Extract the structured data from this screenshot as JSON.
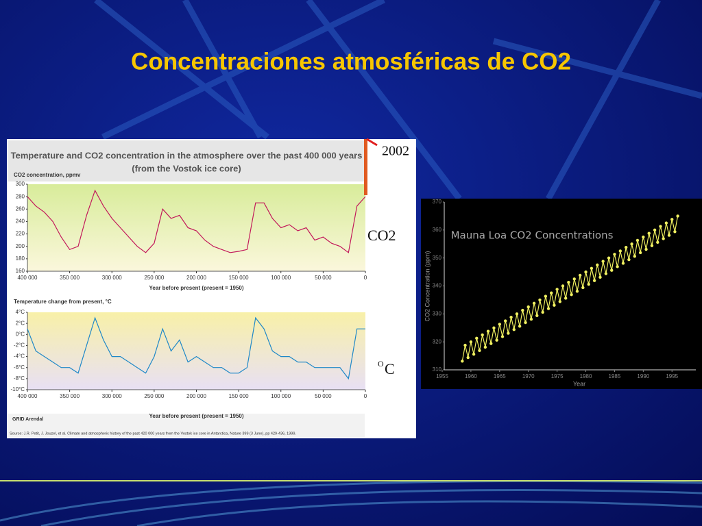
{
  "title": "Concentraciones atmosféricas de CO2",
  "annotations": {
    "year": "2002",
    "co2": "CO2",
    "unit_sup": "O",
    "unit": "C"
  },
  "vostok_panel": {
    "title": [
      "Temperature and CO2 concentration in the atmosphere over the past 400 000 years",
      "(from the Vostok ice core)"
    ],
    "source": "Source: J.R. Petit, J. Jouzel, et al. Climate and atmospheric history of the past 420 000 years from the Vostok ice core in Antarctica, Nature 399 (3 June), pp 429-436, 1999.",
    "logo": "GRID Arendal"
  },
  "chart_data": [
    {
      "type": "line",
      "color": "#c2185b",
      "ylabel": "CO2 concentration, ppmv",
      "xlabel": "Year before present (present = 1950)",
      "x": [
        400000,
        390000,
        380000,
        370000,
        360000,
        350000,
        340000,
        330000,
        320000,
        310000,
        300000,
        290000,
        280000,
        270000,
        260000,
        250000,
        240000,
        230000,
        220000,
        210000,
        200000,
        190000,
        180000,
        170000,
        160000,
        150000,
        140000,
        130000,
        120000,
        110000,
        100000,
        90000,
        80000,
        70000,
        60000,
        50000,
        40000,
        30000,
        20000,
        10000,
        0
      ],
      "values": [
        280,
        265,
        255,
        240,
        215,
        195,
        200,
        250,
        290,
        265,
        245,
        230,
        215,
        200,
        190,
        205,
        260,
        245,
        250,
        230,
        225,
        210,
        200,
        195,
        190,
        192,
        195,
        270,
        270,
        245,
        230,
        235,
        225,
        230,
        210,
        215,
        205,
        200,
        190,
        265,
        280
      ],
      "xlim": [
        400000,
        0
      ],
      "ylim": [
        160,
        300
      ],
      "xticks": [
        {
          "value": 400000,
          "label": "400 000"
        },
        {
          "value": 350000,
          "label": "350 000"
        },
        {
          "value": 300000,
          "label": "300 000"
        },
        {
          "value": 250000,
          "label": "250 000"
        },
        {
          "value": 200000,
          "label": "200 000"
        },
        {
          "value": 150000,
          "label": "150 000"
        },
        {
          "value": 100000,
          "label": "100 000"
        },
        {
          "value": 50000,
          "label": "50 000"
        },
        0
      ],
      "yticks": [
        160,
        180,
        200,
        220,
        240,
        260,
        280,
        300
      ]
    },
    {
      "type": "line",
      "color": "#1e88c8",
      "ylabel": "Temperature change from present, °C",
      "xlabel": "Year before present (present = 1950)",
      "x": [
        400000,
        390000,
        380000,
        370000,
        360000,
        350000,
        340000,
        330000,
        320000,
        310000,
        300000,
        290000,
        280000,
        270000,
        260000,
        250000,
        240000,
        230000,
        220000,
        210000,
        200000,
        190000,
        180000,
        170000,
        160000,
        150000,
        140000,
        130000,
        120000,
        110000,
        100000,
        90000,
        80000,
        70000,
        60000,
        50000,
        40000,
        30000,
        20000,
        10000,
        0
      ],
      "values": [
        1,
        -3,
        -4,
        -5,
        -6,
        -6,
        -7,
        -2,
        3,
        -1,
        -4,
        -4,
        -5,
        -6,
        -7,
        -4,
        1,
        -3,
        -1,
        -5,
        -4,
        -5,
        -6,
        -6,
        -7,
        -7,
        -6,
        3,
        1,
        -3,
        -4,
        -4,
        -5,
        -5,
        -6,
        -6,
        -6,
        -6,
        -8,
        1,
        1
      ],
      "xlim": [
        400000,
        0
      ],
      "ylim": [
        -10,
        4
      ],
      "xticks": [
        {
          "value": 400000,
          "label": "400 000"
        },
        {
          "value": 350000,
          "label": "350 000"
        },
        {
          "value": 300000,
          "label": "300 000"
        },
        {
          "value": 250000,
          "label": "250 000"
        },
        {
          "value": 200000,
          "label": "200 000"
        },
        {
          "value": 150000,
          "label": "150 000"
        },
        {
          "value": 100000,
          "label": "100 000"
        },
        {
          "value": 50000,
          "label": "50 000"
        },
        0
      ],
      "yticks": [
        {
          "value": 4,
          "label": "4°C"
        },
        {
          "value": 2,
          "label": "2°C"
        },
        {
          "value": 0,
          "label": "0°C"
        },
        {
          "value": -2,
          "label": "-2°C"
        },
        {
          "value": -4,
          "label": "-4°C"
        },
        {
          "value": -6,
          "label": "-6°C"
        },
        {
          "value": -8,
          "label": "-8°C"
        },
        {
          "value": -10,
          "label": "-10°C"
        }
      ]
    },
    {
      "type": "line",
      "markers": true,
      "color": "#f0f060",
      "title": "Mauna Loa CO2 Concentrations",
      "ylabel": "CO2 Concentration (ppm)",
      "xlabel": "Year",
      "x": [
        1958.5,
        1959,
        1959.5,
        1960,
        1960.5,
        1961,
        1961.5,
        1962,
        1962.5,
        1963,
        1963.5,
        1964,
        1964.5,
        1965,
        1965.5,
        1966,
        1966.5,
        1967,
        1967.5,
        1968,
        1968.5,
        1969,
        1969.5,
        1970,
        1970.5,
        1971,
        1971.5,
        1972,
        1972.5,
        1973,
        1973.5,
        1974,
        1974.5,
        1975,
        1975.5,
        1976,
        1976.5,
        1977,
        1977.5,
        1978,
        1978.5,
        1979,
        1979.5,
        1980,
        1980.5,
        1981,
        1981.5,
        1982,
        1982.5,
        1983,
        1983.5,
        1984,
        1984.5,
        1985,
        1985.5,
        1986,
        1986.5,
        1987,
        1987.5,
        1988,
        1988.5,
        1989,
        1989.5,
        1990,
        1990.5,
        1991,
        1991.5,
        1992,
        1992.5,
        1993,
        1993.5,
        1994,
        1994.5,
        1995,
        1995.5,
        1996
      ],
      "values": [
        313.1,
        318.8,
        314.4,
        320,
        315.6,
        321.3,
        316.9,
        322.5,
        318.1,
        323.8,
        319.4,
        325,
        320.6,
        326.3,
        321.9,
        327.5,
        323.1,
        328.8,
        324.4,
        330,
        325.6,
        331.3,
        326.9,
        332.5,
        328.1,
        333.8,
        329.4,
        335,
        330.6,
        336.3,
        331.9,
        337.5,
        333.1,
        338.8,
        334.4,
        340,
        335.6,
        341.3,
        336.9,
        342.5,
        338.1,
        343.8,
        339.4,
        345,
        340.6,
        346.3,
        341.9,
        347.5,
        343.1,
        348.8,
        344.4,
        350,
        345.6,
        351.3,
        346.9,
        352.5,
        348.1,
        353.8,
        349.4,
        355,
        350.6,
        356.3,
        351.9,
        357.5,
        353.1,
        358.8,
        354.4,
        360,
        355.6,
        361.3,
        356.9,
        362.5,
        358.1,
        363.8,
        359.4,
        365
      ],
      "xlim": [
        1955,
        1997
      ],
      "ylim": [
        310,
        370
      ],
      "xticks": [
        1955,
        1960,
        1965,
        1970,
        1975,
        1980,
        1985,
        1990,
        1995
      ],
      "yticks": [
        310,
        320,
        330,
        340,
        350,
        360,
        370
      ]
    }
  ]
}
